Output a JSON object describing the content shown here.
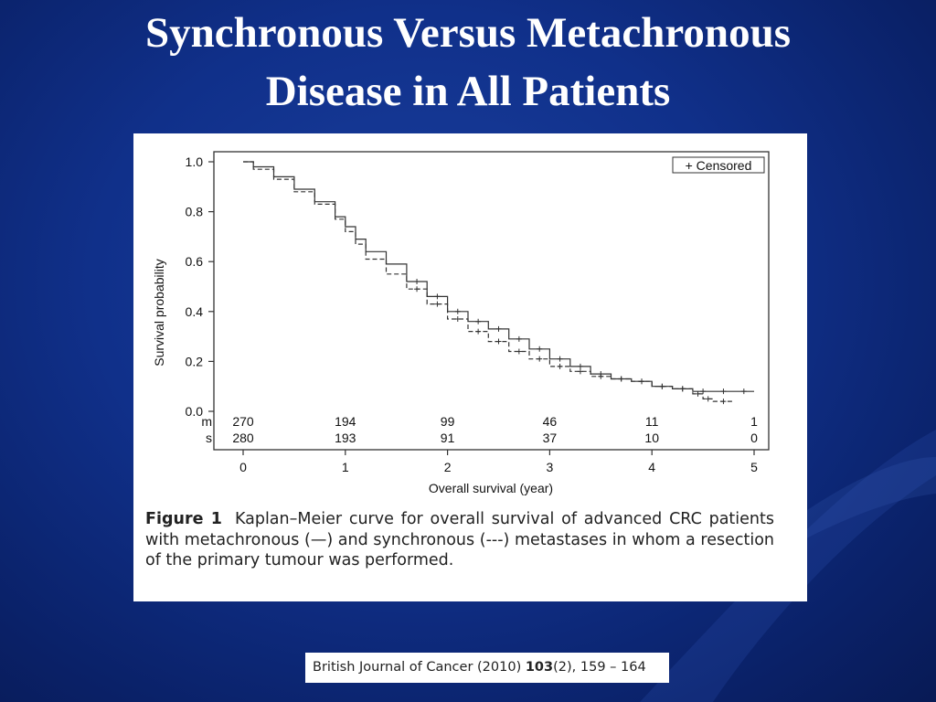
{
  "slide": {
    "title_line1": "Synchronous Versus Metachronous",
    "title_line2": "Disease in All Patients"
  },
  "figure": {
    "caption_label": "Figure 1",
    "caption_text": "Kaplan–Meier curve for overall survival of advanced CRC patients with metachronous (—) and synchronous (---) metastases in whom a resection of the primary tumour was performed."
  },
  "citation": {
    "journal": "British Journal of Cancer (2010)",
    "volume": "103",
    "issue_pages": "(2),  159 – 164"
  },
  "colors": {
    "background": "#10308a",
    "title": "#ffffff",
    "panel": "#ffffff",
    "curve": "#333333"
  },
  "chart_data": {
    "type": "line",
    "title": "",
    "xlabel": "Overall survival (year)",
    "ylabel": "Survival probability",
    "xlim": [
      0,
      5
    ],
    "ylim": [
      0,
      1
    ],
    "x_ticks": [
      "0",
      "1",
      "2",
      "3",
      "4",
      "5"
    ],
    "y_ticks": [
      "0.0",
      "0.2",
      "0.4",
      "0.6",
      "0.8",
      "1.0"
    ],
    "legend": {
      "text": "+ Censored",
      "position": "top-right"
    },
    "grid": false,
    "series": [
      {
        "style": "solid",
        "x": [
          0,
          0.1,
          0.3,
          0.5,
          0.7,
          0.9,
          1.0,
          1.1,
          1.2,
          1.4,
          1.6,
          1.8,
          2.0,
          2.2,
          2.4,
          2.6,
          2.8,
          3.0,
          3.2,
          3.4,
          3.6,
          3.8,
          4.0,
          4.2,
          4.4,
          4.6,
          4.8,
          5.0
        ],
        "y": [
          1.0,
          0.98,
          0.94,
          0.89,
          0.84,
          0.78,
          0.74,
          0.69,
          0.64,
          0.59,
          0.52,
          0.46,
          0.4,
          0.36,
          0.33,
          0.29,
          0.25,
          0.21,
          0.18,
          0.15,
          0.13,
          0.12,
          0.1,
          0.09,
          0.08,
          0.08,
          0.08,
          0.08
        ]
      },
      {
        "style": "dashed",
        "x": [
          0,
          0.1,
          0.3,
          0.5,
          0.7,
          0.9,
          1.0,
          1.1,
          1.2,
          1.4,
          1.6,
          1.8,
          2.0,
          2.2,
          2.4,
          2.6,
          2.8,
          3.0,
          3.2,
          3.4,
          3.6,
          3.8,
          4.0,
          4.2,
          4.4,
          4.5,
          4.6,
          4.8
        ],
        "y": [
          1.0,
          0.97,
          0.93,
          0.88,
          0.83,
          0.77,
          0.72,
          0.67,
          0.61,
          0.55,
          0.49,
          0.43,
          0.37,
          0.32,
          0.28,
          0.24,
          0.21,
          0.18,
          0.16,
          0.14,
          0.13,
          0.12,
          0.1,
          0.09,
          0.07,
          0.05,
          0.04,
          0.04
        ]
      }
    ],
    "risk_table": [
      {
        "label": "m",
        "values": [
          "270",
          "194",
          "99",
          "46",
          "11",
          "1"
        ]
      },
      {
        "label": "s",
        "values": [
          "280",
          "193",
          "91",
          "37",
          "10",
          "0"
        ]
      }
    ]
  }
}
